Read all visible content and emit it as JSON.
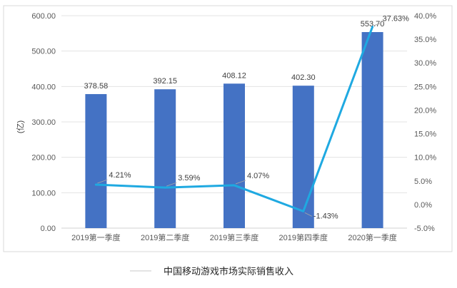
{
  "chart_data": {
    "type": "bar",
    "title": "中国移动游戏市场实际销售收入",
    "ylabel": "(亿)",
    "categories": [
      "2019第一季度",
      "2019第二季度",
      "2019第三季度",
      "2019第四季度",
      "2020第一季度"
    ],
    "series": [
      {
        "kind": "bar",
        "axis": "left",
        "values": [
          378.58,
          392.15,
          408.12,
          402.3,
          553.7
        ],
        "value_labels": [
          "378.58",
          "392.15",
          "408.12",
          "402.30",
          "553.70"
        ],
        "color": "#4472C4"
      },
      {
        "kind": "line",
        "axis": "right",
        "values": [
          4.21,
          3.59,
          4.07,
          -1.43,
          37.63
        ],
        "value_labels": [
          "4.21%",
          "3.59%",
          "4.07%",
          "-1.43%",
          "37.63%"
        ],
        "color": "#1FA9E1"
      }
    ],
    "y_left": {
      "min": 0,
      "max": 600,
      "ticks": [
        0,
        100,
        200,
        300,
        400,
        500,
        600
      ],
      "tick_labels": [
        "0.00",
        "100.00",
        "200.00",
        "300.00",
        "400.00",
        "500.00",
        "600.00"
      ]
    },
    "y_right": {
      "min": -5,
      "max": 40,
      "ticks": [
        -5,
        0,
        5,
        10,
        15,
        20,
        25,
        30,
        35,
        40
      ],
      "tick_labels": [
        "-5.0%",
        "0.0%",
        "5.0%",
        "10.0%",
        "15.0%",
        "20.0%",
        "25.0%",
        "30.0%",
        "35.0%",
        "40.0%"
      ]
    },
    "grid": true,
    "legend": {
      "position": "bottom",
      "line_color": "#c8c8c8"
    }
  }
}
